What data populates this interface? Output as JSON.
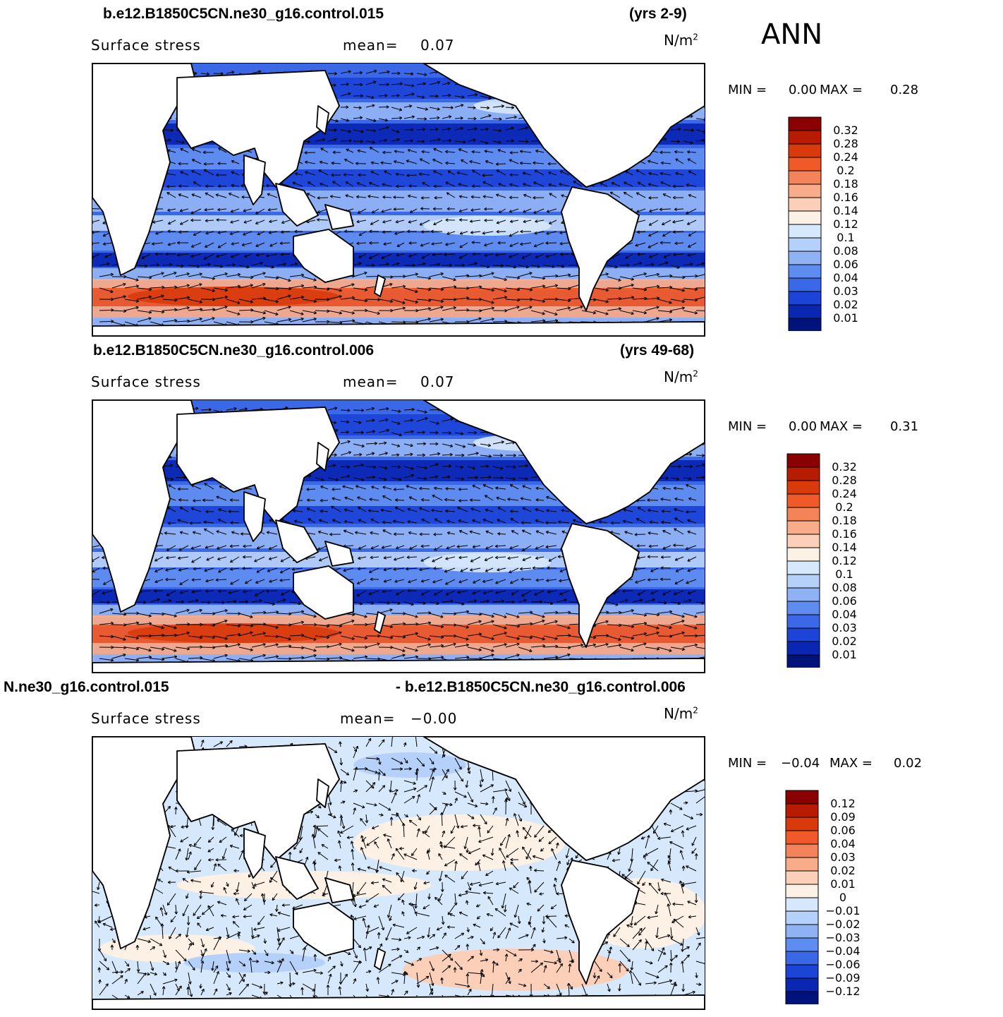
{
  "season": "ANN",
  "panels": [
    {
      "case_left": "b.e12.B1850C5CN.ne30_g16.control.015",
      "case_right": "(yrs 2-9)",
      "subtitle": "Surface stress",
      "mean_label": "mean=",
      "mean_value": "0.07",
      "units": "N/m",
      "units_exp": "2",
      "min_label": "MIN =",
      "min_value": "0.00",
      "max_label": "MAX =",
      "max_value": "0.28",
      "levels": [
        "0.32",
        "0.28",
        "0.24",
        "0.2",
        "0.18",
        "0.16",
        "0.14",
        "0.12",
        "0.1",
        "0.08",
        "0.06",
        "0.04",
        "0.03",
        "0.02",
        "0.01"
      ],
      "colors": [
        "#8b0000",
        "#b71c00",
        "#d83a0b",
        "#f05a28",
        "#f4835a",
        "#f8ac8a",
        "#fbcfb8",
        "#fdf0e4",
        "#d6e8fb",
        "#b5d0f9",
        "#8fb2f4",
        "#5f8def",
        "#3b68e6",
        "#1c45d8",
        "#0927b3",
        "#00137a"
      ]
    },
    {
      "case_left": "b.e12.B1850C5CN.ne30_g16.control.006",
      "case_right": "(yrs 49-68)",
      "subtitle": "Surface stress",
      "mean_label": "mean=",
      "mean_value": "0.07",
      "units": "N/m",
      "units_exp": "2",
      "min_label": "MIN =",
      "min_value": "0.00",
      "max_label": "MAX =",
      "max_value": "0.31",
      "levels": [
        "0.32",
        "0.28",
        "0.24",
        "0.2",
        "0.18",
        "0.16",
        "0.14",
        "0.12",
        "0.1",
        "0.08",
        "0.06",
        "0.04",
        "0.03",
        "0.02",
        "0.01"
      ],
      "colors": [
        "#8b0000",
        "#b71c00",
        "#d83a0b",
        "#f05a28",
        "#f4835a",
        "#f8ac8a",
        "#fbcfb8",
        "#fdf0e4",
        "#d6e8fb",
        "#b5d0f9",
        "#8fb2f4",
        "#5f8def",
        "#3b68e6",
        "#1c45d8",
        "#0927b3",
        "#00137a"
      ]
    },
    {
      "case_left": "N.ne30_g16.control.015",
      "case_right": "- b.e12.B1850C5CN.ne30_g16.control.006",
      "subtitle": "Surface stress",
      "mean_label": "mean=",
      "mean_value": "−0.00",
      "units": "N/m",
      "units_exp": "2",
      "min_label": "MIN =",
      "min_value": "−0.04",
      "max_label": "MAX =",
      "max_value": "0.02",
      "levels": [
        "0.12",
        "0.09",
        "0.06",
        "0.04",
        "0.03",
        "0.02",
        "0.01",
        "0",
        "−0.01",
        "−0.02",
        "−0.03",
        "−0.04",
        "−0.06",
        "−0.09",
        "−0.12"
      ],
      "colors": [
        "#8b0000",
        "#b71c00",
        "#d83a0b",
        "#f05a28",
        "#f4835a",
        "#f8ac8a",
        "#fbcfb8",
        "#fdf0e4",
        "#d6e8fb",
        "#b5d0f9",
        "#8fb2f4",
        "#5f8def",
        "#3b68e6",
        "#1c45d8",
        "#0927b3",
        "#00137a"
      ]
    }
  ]
}
